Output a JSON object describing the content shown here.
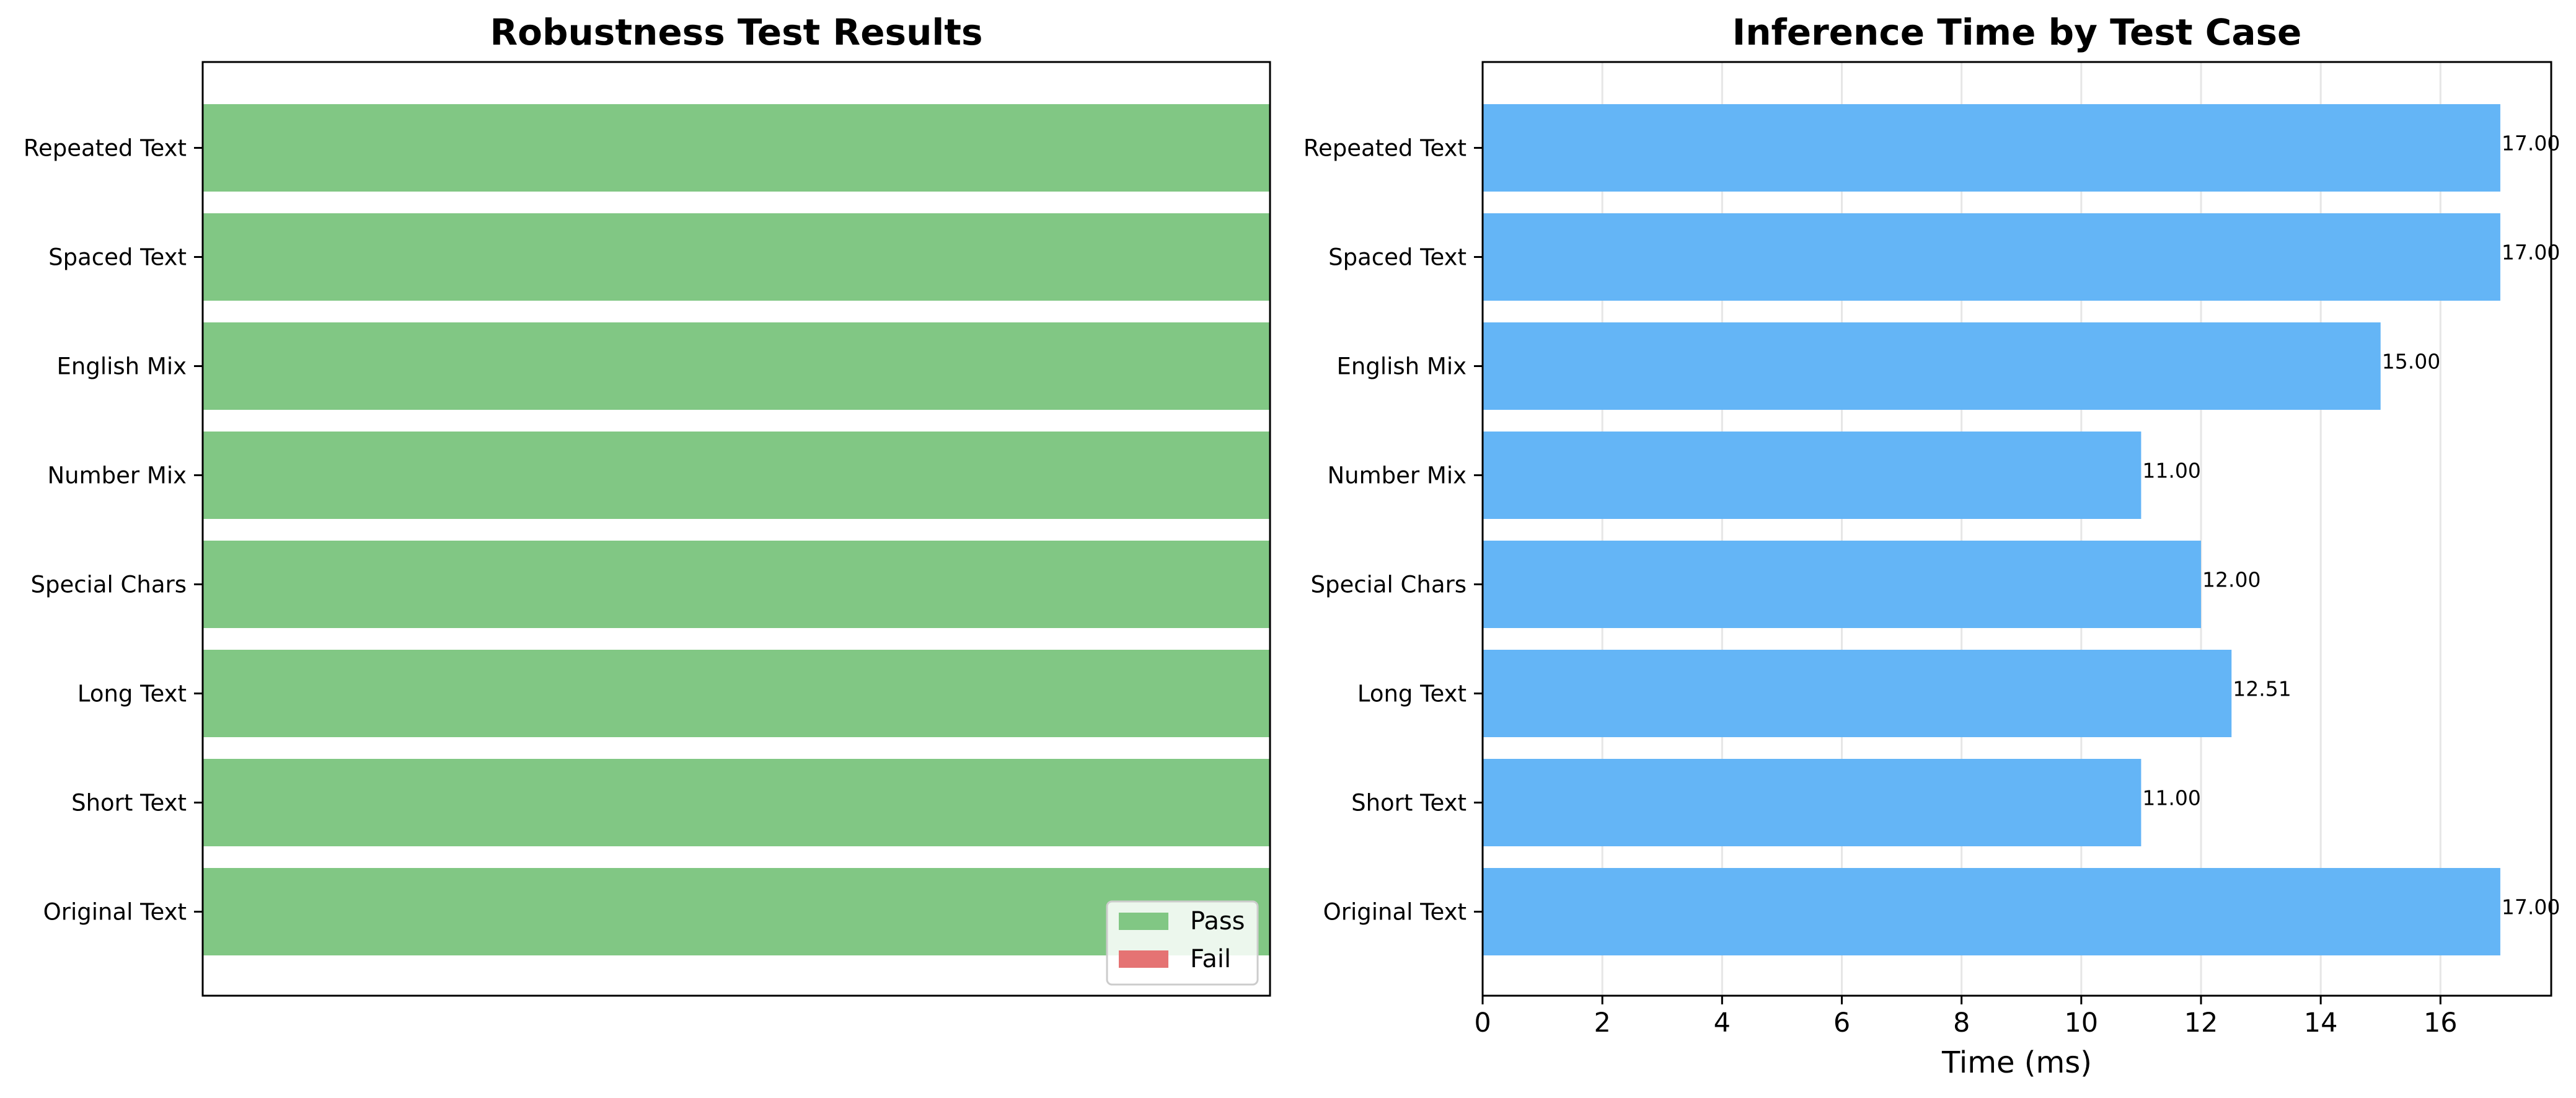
{
  "chart_data": [
    {
      "type": "bar",
      "orientation": "horizontal",
      "title": "Robustness Test Results",
      "categories": [
        "Original Text",
        "Short Text",
        "Long Text",
        "Special Chars",
        "Number Mix",
        "English Mix",
        "Spaced Text",
        "Repeated Text"
      ],
      "series": [
        {
          "name": "Pass",
          "color": "#81c784",
          "values": [
            1,
            1,
            1,
            1,
            1,
            1,
            1,
            1
          ]
        },
        {
          "name": "Fail",
          "color": "#e57373",
          "values": [
            0,
            0,
            0,
            0,
            0,
            0,
            0,
            0
          ]
        }
      ],
      "xlim": [
        0,
        1
      ],
      "x_ticks_visible": false,
      "grid": false,
      "legend": {
        "placement": "lower-right",
        "entries": [
          "Pass",
          "Fail"
        ]
      }
    },
    {
      "type": "bar",
      "orientation": "horizontal",
      "title": "Inference Time by Test Case",
      "categories": [
        "Original Text",
        "Short Text",
        "Long Text",
        "Special Chars",
        "Number Mix",
        "English Mix",
        "Spaced Text",
        "Repeated Text"
      ],
      "values": [
        17.0,
        11.0,
        12.51,
        12.0,
        11.0,
        15.0,
        17.0,
        17.0
      ],
      "value_labels": [
        "17.00",
        "11.00",
        "12.51",
        "12.00",
        "11.00",
        "15.00",
        "17.00",
        "17.00"
      ],
      "color": "#64b5f6",
      "xlabel": "Time (ms)",
      "xlim": [
        0,
        17.85
      ],
      "x_ticks": [
        0,
        2,
        4,
        6,
        8,
        10,
        12,
        14,
        16
      ],
      "grid": "vertical"
    }
  ]
}
